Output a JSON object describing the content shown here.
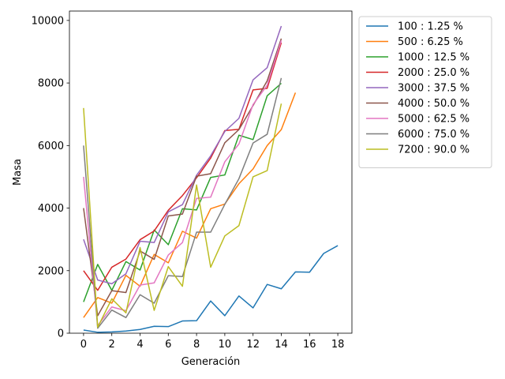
{
  "chart_data": {
    "type": "line",
    "xlabel": "Generación",
    "ylabel": "Masa",
    "xlim": [
      -1,
      19
    ],
    "ylim": [
      0,
      10300
    ],
    "xticks": [
      0,
      2,
      4,
      6,
      8,
      10,
      12,
      14,
      16,
      18
    ],
    "yticks": [
      0,
      2000,
      4000,
      6000,
      8000,
      10000
    ],
    "grid": false,
    "legend_position": "outside-right",
    "series": [
      {
        "name": "100 : 1.25 %",
        "color": "#1f77b4",
        "x": [
          0,
          1,
          2,
          3,
          4,
          5,
          6,
          7,
          8,
          9,
          10,
          11,
          12,
          13,
          14,
          15,
          16,
          17,
          18
        ],
        "values": [
          100,
          30,
          40,
          70,
          120,
          220,
          210,
          390,
          400,
          1030,
          560,
          1190,
          810,
          1560,
          1420,
          1960,
          1950,
          2550,
          2800
        ]
      },
      {
        "name": "500 : 6.25 %",
        "color": "#ff7f0e",
        "x": [
          0,
          1,
          2,
          3,
          4,
          5,
          6,
          7,
          8,
          9,
          10,
          11,
          12,
          13,
          14,
          15
        ],
        "values": [
          500,
          1140,
          960,
          1850,
          1500,
          2520,
          2250,
          3260,
          3040,
          3980,
          4130,
          4780,
          5250,
          6000,
          6510,
          7690
        ]
      },
      {
        "name": "1000 : 12.5 %",
        "color": "#2ca02c",
        "x": [
          0,
          1,
          2,
          3,
          4,
          5,
          6,
          7,
          8,
          9,
          10,
          11,
          12,
          13,
          14
        ],
        "values": [
          1000,
          2200,
          1370,
          2290,
          2020,
          3300,
          2830,
          3980,
          3940,
          4980,
          5060,
          6330,
          6190,
          7590,
          7990
        ]
      },
      {
        "name": "2000 : 25.0 %",
        "color": "#d62728",
        "x": [
          0,
          1,
          2,
          3,
          4,
          5,
          6,
          7,
          8,
          9,
          10,
          11,
          12,
          13,
          14
        ],
        "values": [
          2000,
          1370,
          2110,
          2370,
          2990,
          3270,
          3930,
          4400,
          4970,
          5600,
          6480,
          6520,
          7780,
          7830,
          9290
        ]
      },
      {
        "name": "3000 : 37.5 %",
        "color": "#9467bd",
        "x": [
          0,
          1,
          2,
          3,
          4,
          5,
          6,
          7,
          8,
          9,
          10,
          11,
          12,
          13,
          14
        ],
        "values": [
          3000,
          1700,
          1580,
          1900,
          2940,
          2900,
          3880,
          4110,
          5050,
          5670,
          6450,
          6870,
          8100,
          8490,
          9820
        ]
      },
      {
        "name": "4000 : 50.0 %",
        "color": "#8c564b",
        "x": [
          0,
          1,
          2,
          3,
          4,
          5,
          6,
          7,
          8,
          9,
          10,
          11,
          12,
          13,
          14
        ],
        "values": [
          4000,
          560,
          1360,
          1300,
          2630,
          2360,
          3750,
          3810,
          5020,
          5100,
          6090,
          6510,
          7280,
          8070,
          9420
        ]
      },
      {
        "name": "5000 : 62.5 %",
        "color": "#e377c2",
        "x": [
          0,
          1,
          2,
          3,
          4,
          5,
          6,
          7,
          8,
          9,
          10,
          11,
          12,
          13,
          14
        ],
        "values": [
          5000,
          240,
          840,
          720,
          1540,
          1610,
          2500,
          2900,
          4310,
          4350,
          5480,
          6050,
          7310,
          7930,
          9360
        ]
      },
      {
        "name": "6000 : 75.0 %",
        "color": "#7f7f7f",
        "x": [
          0,
          1,
          2,
          3,
          4,
          5,
          6,
          7,
          8,
          9,
          10,
          11,
          12,
          13,
          14
        ],
        "values": [
          6000,
          160,
          740,
          500,
          1230,
          960,
          1840,
          1810,
          3230,
          3230,
          4120,
          4940,
          6080,
          6360,
          8160
        ]
      },
      {
        "name": "7200 : 90.0 %",
        "color": "#bcbd22",
        "x": [
          0,
          1,
          2,
          3,
          4,
          5,
          6,
          7,
          8,
          9,
          10,
          11,
          12,
          13,
          14
        ],
        "values": [
          7200,
          190,
          1100,
          650,
          2740,
          730,
          2130,
          1500,
          4740,
          2110,
          3110,
          3440,
          5000,
          5200,
          7340
        ]
      }
    ]
  }
}
